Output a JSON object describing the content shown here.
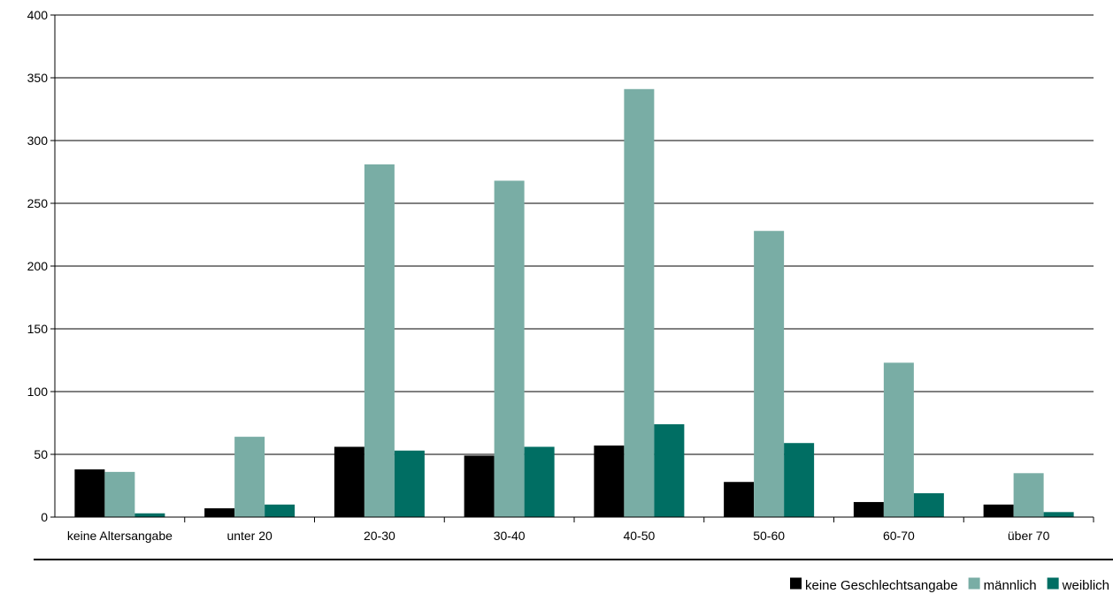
{
  "chart_data": {
    "type": "bar",
    "title": "",
    "xlabel": "",
    "ylabel": "",
    "categories": [
      "keine Altersangabe",
      "unter 20",
      "20-30",
      "30-40",
      "40-50",
      "50-60",
      "60-70",
      "über 70"
    ],
    "series": [
      {
        "name": "keine Geschlechtsangabe",
        "color": "#000000",
        "values": [
          38,
          7,
          56,
          49,
          57,
          28,
          12,
          10
        ]
      },
      {
        "name": "männlich",
        "color": "#79ADA5",
        "values": [
          36,
          64,
          281,
          268,
          341,
          228,
          123,
          35
        ]
      },
      {
        "name": "weiblich",
        "color": "#006E63",
        "values": [
          3,
          10,
          53,
          56,
          74,
          59,
          19,
          4
        ]
      }
    ],
    "ylim": [
      0,
      400
    ],
    "yticks": [
      0,
      50,
      100,
      150,
      200,
      250,
      300,
      350,
      400
    ],
    "grid": true,
    "legend_position": "bottom-right"
  }
}
